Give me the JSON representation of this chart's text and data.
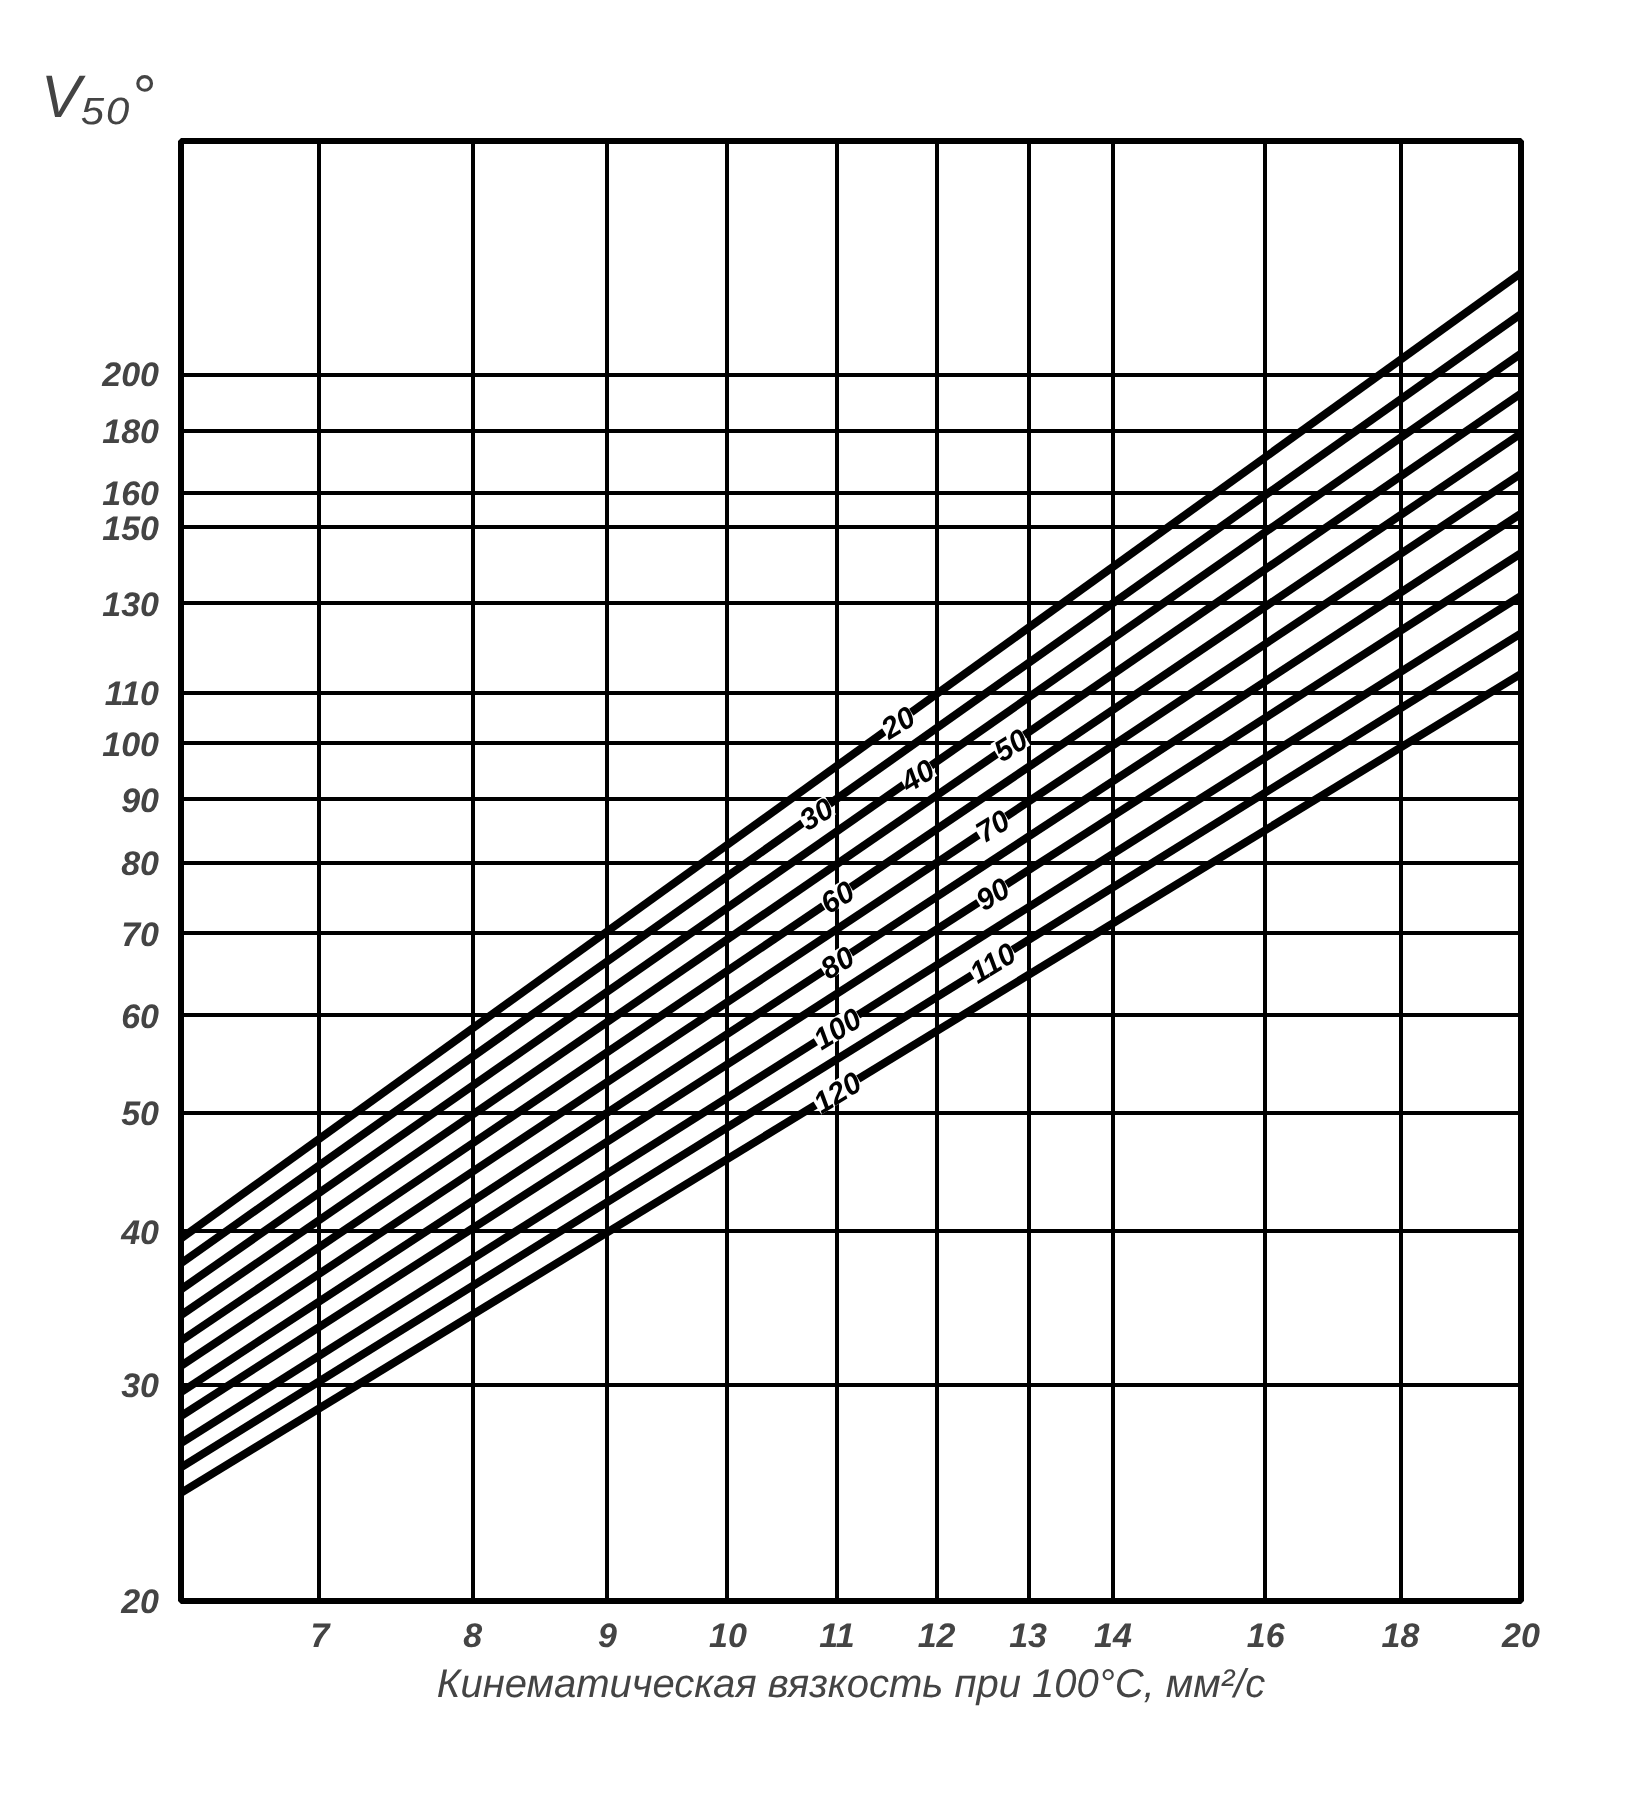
{
  "chart_data": {
    "type": "line",
    "ylabel": "V₅₀°",
    "xlabel": "Кинематическая вязкость при 100°С, мм²/с",
    "x": [
      6.2,
      20
    ],
    "series": [
      {
        "name": "20",
        "color": "#000000",
        "values": [
          39.5,
          242
        ]
      },
      {
        "name": "30",
        "color": "#000000",
        "values": [
          37.7,
          224
        ]
      },
      {
        "name": "40",
        "color": "#000000",
        "values": [
          35.9,
          208
        ]
      },
      {
        "name": "50",
        "color": "#000000",
        "values": [
          34.2,
          193
        ]
      },
      {
        "name": "60",
        "color": "#000000",
        "values": [
          32.6,
          179
        ]
      },
      {
        "name": "70",
        "color": "#000000",
        "values": [
          31.1,
          166
        ]
      },
      {
        "name": "80",
        "color": "#000000",
        "values": [
          29.6,
          154
        ]
      },
      {
        "name": "90",
        "color": "#000000",
        "values": [
          28.3,
          143
        ]
      },
      {
        "name": "100",
        "color": "#000000",
        "values": [
          26.9,
          132
        ]
      },
      {
        "name": "110",
        "color": "#000000",
        "values": [
          25.7,
          123
        ]
      },
      {
        "name": "120",
        "color": "#000000",
        "values": [
          24.5,
          114
        ]
      }
    ],
    "log": "xy",
    "grid": true,
    "line_style": "solid",
    "xlim": [
      6.2,
      20
    ],
    "ylim": [
      20,
      310
    ],
    "xticks": [
      7,
      8,
      9,
      10,
      11,
      12,
      13,
      14,
      16,
      18,
      20
    ],
    "yticks": [
      20,
      30,
      40,
      50,
      60,
      70,
      80,
      90,
      100,
      110,
      130,
      150,
      160,
      180,
      200
    ]
  }
}
